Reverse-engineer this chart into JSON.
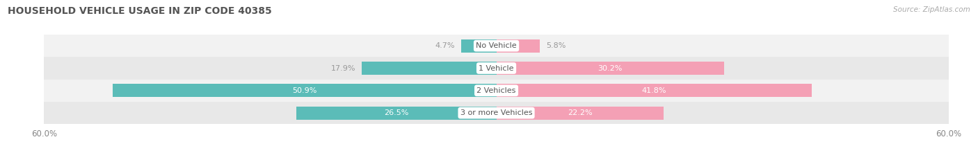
{
  "title": "HOUSEHOLD VEHICLE USAGE IN ZIP CODE 40385",
  "source": "Source: ZipAtlas.com",
  "categories": [
    "No Vehicle",
    "1 Vehicle",
    "2 Vehicles",
    "3 or more Vehicles"
  ],
  "owner_values": [
    4.7,
    17.9,
    50.9,
    26.5
  ],
  "renter_values": [
    5.8,
    30.2,
    41.8,
    22.2
  ],
  "owner_color": "#5bbcb8",
  "renter_color": "#f4a0b5",
  "row_bg_even": "#f2f2f2",
  "row_bg_odd": "#e8e8e8",
  "label_color_light": "#ffffff",
  "label_color_dark": "#999999",
  "axis_label_left": "60.0%",
  "axis_label_right": "60.0%",
  "x_max": 60.0,
  "title_fontsize": 10,
  "source_fontsize": 7.5,
  "bar_height": 0.58,
  "category_fontsize": 8,
  "legend_fontsize": 8.5
}
